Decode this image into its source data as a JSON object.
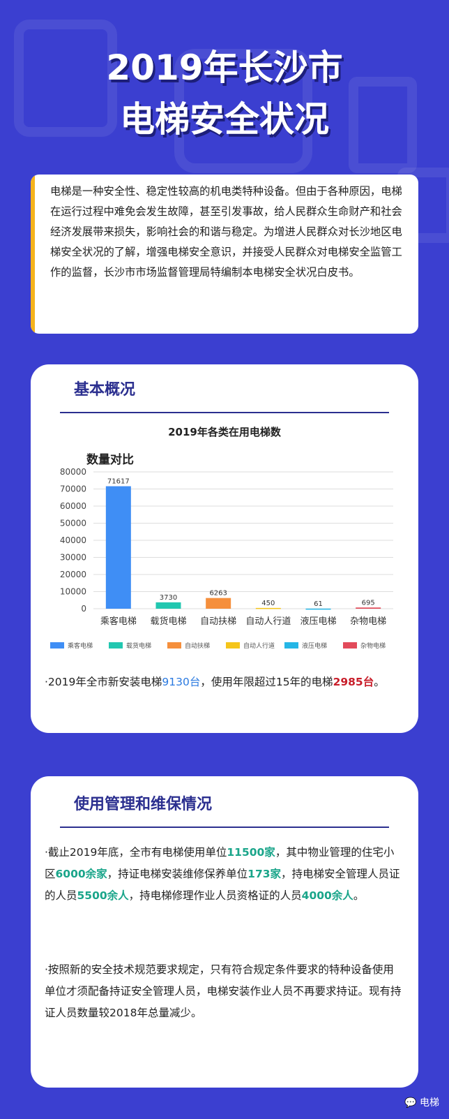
{
  "header": {
    "title_line1": "2019年长沙市",
    "title_line2": "电梯安全状况"
  },
  "intro": {
    "text": "电梯是一种安全性、稳定性较高的机电类特种设备。但由于各种原因，电梯在运行过程中难免会发生故障，甚至引发事故，给人民群众生命财产和社会经济发展带来损失，影响社会的和谐与稳定。为增进人民群众对长沙地区电梯安全状况的了解，增强电梯安全意识，并接受人民群众对电梯安全监管工作的监督，长沙市市场监督管理局特编制本电梯安全状况白皮书。"
  },
  "section1": {
    "title": "基本概况",
    "stat_prefix": "·2019年全市新安装电梯",
    "stat_value1": "9130台",
    "stat_mid": "，使用年限超过15年的电梯",
    "stat_value2": "2985台",
    "stat_suffix": "。"
  },
  "chart_data": {
    "type": "bar",
    "title": "2019年各类在用电梯数",
    "subtitle": "数量对比",
    "categories": [
      "乘客电梯",
      "载货电梯",
      "自动扶梯",
      "自动人行道",
      "液压电梯",
      "杂物电梯"
    ],
    "values": [
      71617,
      3730,
      6263,
      450,
      61,
      695
    ],
    "value_labels": [
      "71617",
      "3730",
      "6263",
      "450",
      "61",
      "695"
    ],
    "colors": [
      "#3f8ef5",
      "#22c7b0",
      "#f58f3c",
      "#f5c51a",
      "#25b6e6",
      "#e24a5a"
    ],
    "ylim": [
      0,
      80000
    ],
    "yticks": [
      "0",
      "10000",
      "20000",
      "30000",
      "40000",
      "50000",
      "60000",
      "70000",
      "80000"
    ],
    "grid": true,
    "legend_position": "bottom"
  },
  "section2": {
    "title": "使用管理和维保情况",
    "p1": {
      "a": "·截止2019年底，全市有电梯使用单位",
      "v1": "11500家",
      "b": "，其中物业管理的住宅小区",
      "v2": "6000余家",
      "c": "，持证电梯安装维修保养单位",
      "v3": "173家",
      "d": "，持电梯安全管理人员证的人员",
      "v4": "5500余人",
      "e": "，持电梯修理作业人员资格证的人员",
      "v5": "4000余人",
      "f": "。"
    },
    "p2": "·按照新的安全技术规范要求规定，只有符合规定条件要求的特种设备使用单位才须配备持证安全管理人员，电梯安装作业人员不再要求持证。现有持证人员数量较2018年总量减少。"
  },
  "footer": {
    "brand": "电梯",
    "icon": "wechat-icon"
  }
}
